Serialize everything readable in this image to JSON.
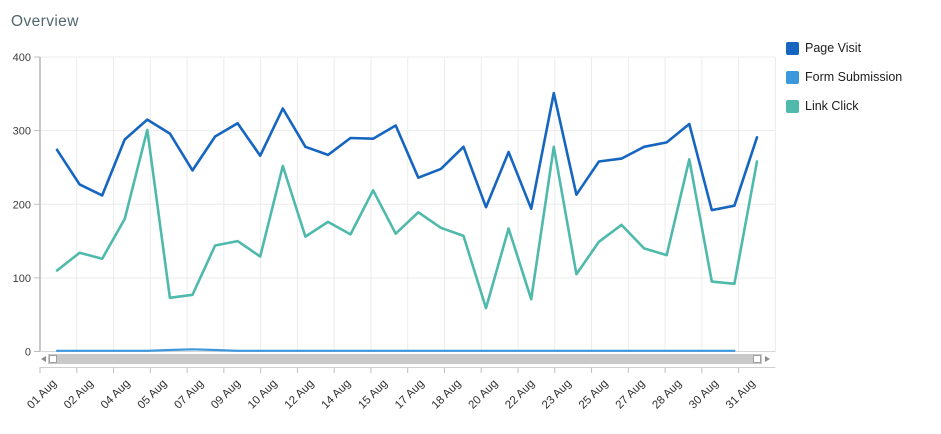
{
  "title": "Overview",
  "chart_data": {
    "type": "line",
    "title": "Overview",
    "x_tick_labels": [
      "01 Aug",
      "02 Aug",
      "04 Aug",
      "05 Aug",
      "07 Aug",
      "09 Aug",
      "10 Aug",
      "12 Aug",
      "14 Aug",
      "15 Aug",
      "17 Aug",
      "18 Aug",
      "20 Aug",
      "22 Aug",
      "23 Aug",
      "25 Aug",
      "27 Aug",
      "28 Aug",
      "30 Aug",
      "31 Aug"
    ],
    "y_ticks": [
      0,
      100,
      200,
      300,
      400
    ],
    "ylim": [
      0,
      400
    ],
    "grid": true,
    "legend_position": "right",
    "series": [
      {
        "name": "Page Visit",
        "color": "#1565C1",
        "values": [
          274,
          227,
          212,
          288,
          315,
          296,
          246,
          292,
          310,
          266,
          330,
          278,
          267,
          290,
          289,
          307,
          236,
          248,
          278,
          196,
          271,
          194,
          351,
          213,
          258,
          262,
          278,
          284,
          309,
          192,
          198,
          291
        ]
      },
      {
        "name": "Form Submission",
        "color": "#3D97DC",
        "values": [
          1,
          1,
          1,
          1,
          1,
          2,
          3,
          2,
          1,
          1,
          1,
          1,
          1,
          1,
          1,
          1,
          1,
          1,
          1,
          1,
          1,
          1,
          1,
          1,
          1,
          1,
          1,
          1,
          1,
          1,
          1,
          null
        ]
      },
      {
        "name": "Link Click",
        "color": "#4FB9AB",
        "values": [
          110,
          134,
          126,
          180,
          301,
          73,
          77,
          144,
          150,
          129,
          252,
          156,
          176,
          159,
          219,
          160,
          189,
          168,
          157,
          59,
          167,
          71,
          278,
          105,
          149,
          172,
          140,
          131,
          261,
          95,
          92,
          258
        ]
      }
    ]
  },
  "colors": {
    "grid": "#ececec",
    "y_axis_line": "#b5b5b5",
    "zero_line": "#d6d6d6",
    "category_axis_line": "#cfcfcf",
    "tick": "#bdbdbd",
    "x_label": "#303030",
    "y_label": "#3c3c3c",
    "title": "#53666e"
  }
}
